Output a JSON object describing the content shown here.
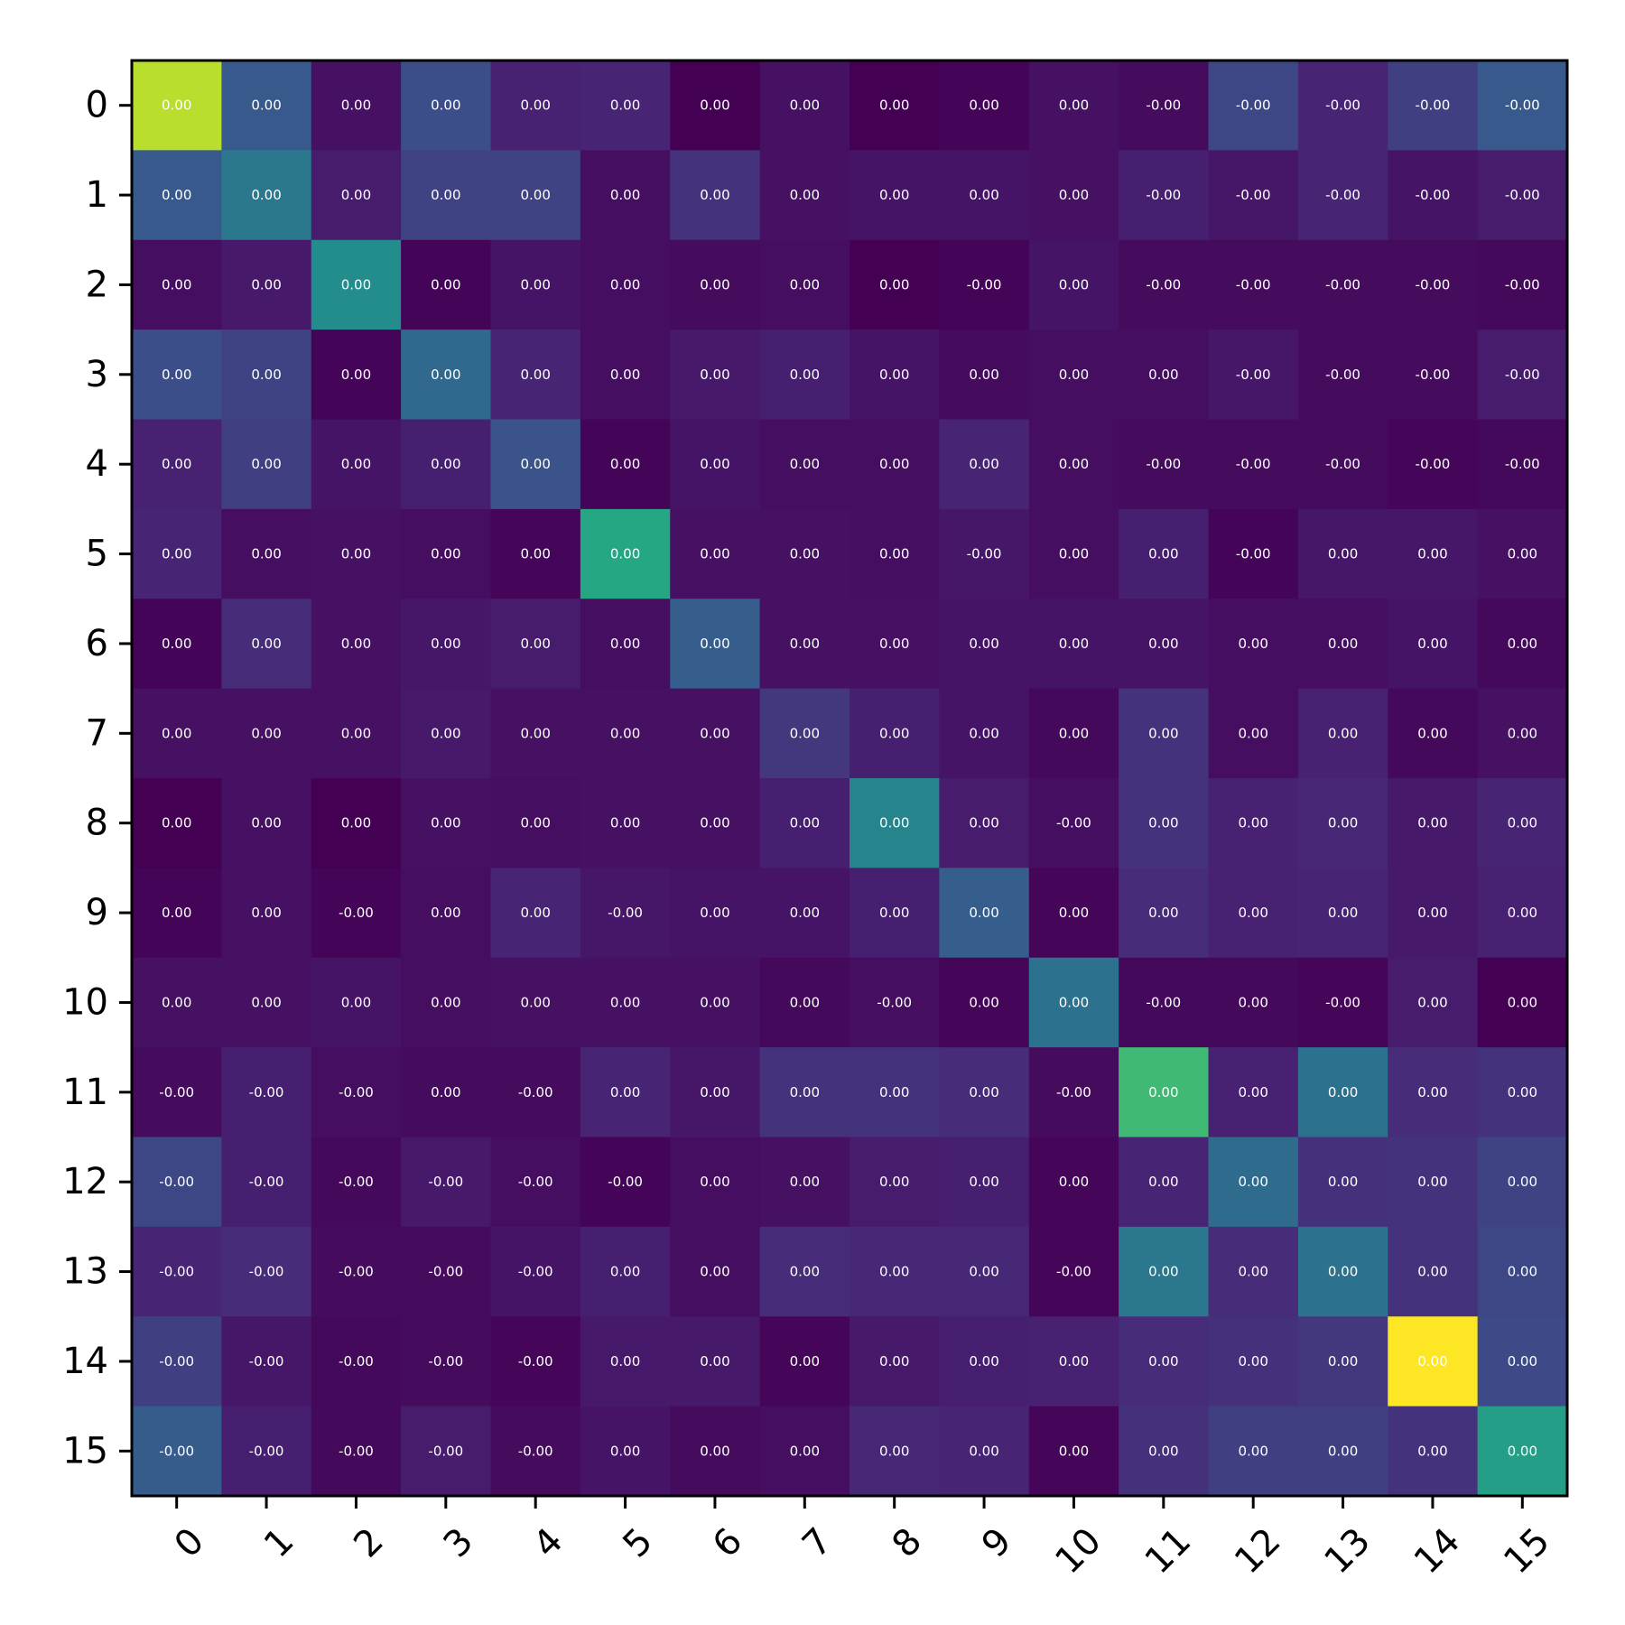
{
  "chart_data": {
    "type": "heatmap",
    "title": "",
    "xlabel": "",
    "ylabel": "",
    "colormap": "viridis",
    "x_categories": [
      "0",
      "1",
      "2",
      "3",
      "4",
      "5",
      "6",
      "7",
      "8",
      "9",
      "10",
      "11",
      "12",
      "13",
      "14",
      "15"
    ],
    "y_categories": [
      "0",
      "1",
      "2",
      "3",
      "4",
      "5",
      "6",
      "7",
      "8",
      "9",
      "10",
      "11",
      "12",
      "13",
      "14",
      "15"
    ],
    "intensity": [
      [
        0.9,
        0.28,
        0.06,
        0.24,
        0.12,
        0.13,
        0.0,
        0.06,
        0.0,
        0.01,
        0.06,
        0.04,
        0.22,
        0.13,
        0.2,
        0.28
      ],
      [
        0.28,
        0.4,
        0.1,
        0.21,
        0.21,
        0.05,
        0.17,
        0.06,
        0.07,
        0.07,
        0.06,
        0.11,
        0.08,
        0.13,
        0.07,
        0.1
      ],
      [
        0.05,
        0.09,
        0.48,
        0.01,
        0.07,
        0.05,
        0.04,
        0.05,
        0.0,
        0.01,
        0.07,
        0.04,
        0.04,
        0.04,
        0.04,
        0.03
      ],
      [
        0.24,
        0.21,
        0.01,
        0.34,
        0.13,
        0.05,
        0.09,
        0.11,
        0.07,
        0.04,
        0.05,
        0.05,
        0.08,
        0.04,
        0.04,
        0.1
      ],
      [
        0.12,
        0.2,
        0.07,
        0.11,
        0.26,
        0.01,
        0.07,
        0.05,
        0.05,
        0.13,
        0.05,
        0.04,
        0.04,
        0.04,
        0.02,
        0.03
      ],
      [
        0.13,
        0.05,
        0.06,
        0.05,
        0.02,
        0.6,
        0.06,
        0.06,
        0.05,
        0.08,
        0.05,
        0.11,
        0.01,
        0.08,
        0.08,
        0.06
      ],
      [
        0.01,
        0.15,
        0.06,
        0.08,
        0.1,
        0.05,
        0.3,
        0.06,
        0.06,
        0.07,
        0.07,
        0.07,
        0.05,
        0.05,
        0.07,
        0.03
      ],
      [
        0.06,
        0.06,
        0.06,
        0.09,
        0.06,
        0.06,
        0.06,
        0.18,
        0.11,
        0.07,
        0.03,
        0.17,
        0.05,
        0.12,
        0.03,
        0.06
      ],
      [
        0.0,
        0.06,
        0.0,
        0.06,
        0.05,
        0.06,
        0.06,
        0.11,
        0.45,
        0.1,
        0.05,
        0.17,
        0.12,
        0.14,
        0.09,
        0.13
      ],
      [
        0.01,
        0.06,
        0.01,
        0.05,
        0.13,
        0.08,
        0.07,
        0.07,
        0.11,
        0.3,
        0.02,
        0.15,
        0.12,
        0.13,
        0.09,
        0.12
      ],
      [
        0.06,
        0.06,
        0.07,
        0.05,
        0.06,
        0.06,
        0.06,
        0.03,
        0.05,
        0.02,
        0.38,
        0.03,
        0.03,
        0.02,
        0.1,
        0.0
      ],
      [
        0.04,
        0.11,
        0.05,
        0.04,
        0.04,
        0.13,
        0.08,
        0.17,
        0.17,
        0.15,
        0.04,
        0.68,
        0.12,
        0.38,
        0.15,
        0.17
      ],
      [
        0.22,
        0.11,
        0.03,
        0.09,
        0.05,
        0.01,
        0.05,
        0.06,
        0.1,
        0.11,
        0.02,
        0.13,
        0.35,
        0.16,
        0.17,
        0.21
      ],
      [
        0.13,
        0.15,
        0.04,
        0.04,
        0.07,
        0.11,
        0.05,
        0.15,
        0.14,
        0.14,
        0.02,
        0.4,
        0.15,
        0.38,
        0.17,
        0.22
      ],
      [
        0.2,
        0.08,
        0.03,
        0.04,
        0.02,
        0.09,
        0.09,
        0.02,
        0.09,
        0.11,
        0.12,
        0.15,
        0.16,
        0.18,
        1.0,
        0.23
      ],
      [
        0.29,
        0.11,
        0.03,
        0.1,
        0.04,
        0.07,
        0.04,
        0.05,
        0.14,
        0.13,
        0.02,
        0.16,
        0.2,
        0.2,
        0.17,
        0.56
      ]
    ],
    "cell_labels": [
      [
        "0.00",
        "0.00",
        "0.00",
        "0.00",
        "0.00",
        "0.00",
        "0.00",
        "0.00",
        "0.00",
        "0.00",
        "0.00",
        "-0.00",
        "-0.00",
        "-0.00",
        "-0.00",
        "-0.00"
      ],
      [
        "0.00",
        "0.00",
        "0.00",
        "0.00",
        "0.00",
        "0.00",
        "0.00",
        "0.00",
        "0.00",
        "0.00",
        "0.00",
        "-0.00",
        "-0.00",
        "-0.00",
        "-0.00",
        "-0.00"
      ],
      [
        "0.00",
        "0.00",
        "0.00",
        "0.00",
        "0.00",
        "0.00",
        "0.00",
        "0.00",
        "0.00",
        "-0.00",
        "0.00",
        "-0.00",
        "-0.00",
        "-0.00",
        "-0.00",
        "-0.00"
      ],
      [
        "0.00",
        "0.00",
        "0.00",
        "0.00",
        "0.00",
        "0.00",
        "0.00",
        "0.00",
        "0.00",
        "0.00",
        "0.00",
        "0.00",
        "-0.00",
        "-0.00",
        "-0.00",
        "-0.00"
      ],
      [
        "0.00",
        "0.00",
        "0.00",
        "0.00",
        "0.00",
        "0.00",
        "0.00",
        "0.00",
        "0.00",
        "0.00",
        "0.00",
        "-0.00",
        "-0.00",
        "-0.00",
        "-0.00",
        "-0.00"
      ],
      [
        "0.00",
        "0.00",
        "0.00",
        "0.00",
        "0.00",
        "0.00",
        "0.00",
        "0.00",
        "0.00",
        "-0.00",
        "0.00",
        "0.00",
        "-0.00",
        "0.00",
        "0.00",
        "0.00"
      ],
      [
        "0.00",
        "0.00",
        "0.00",
        "0.00",
        "0.00",
        "0.00",
        "0.00",
        "0.00",
        "0.00",
        "0.00",
        "0.00",
        "0.00",
        "0.00",
        "0.00",
        "0.00",
        "0.00"
      ],
      [
        "0.00",
        "0.00",
        "0.00",
        "0.00",
        "0.00",
        "0.00",
        "0.00",
        "0.00",
        "0.00",
        "0.00",
        "0.00",
        "0.00",
        "0.00",
        "0.00",
        "0.00",
        "0.00"
      ],
      [
        "0.00",
        "0.00",
        "0.00",
        "0.00",
        "0.00",
        "0.00",
        "0.00",
        "0.00",
        "0.00",
        "0.00",
        "-0.00",
        "0.00",
        "0.00",
        "0.00",
        "0.00",
        "0.00"
      ],
      [
        "0.00",
        "0.00",
        "-0.00",
        "0.00",
        "0.00",
        "-0.00",
        "0.00",
        "0.00",
        "0.00",
        "0.00",
        "0.00",
        "0.00",
        "0.00",
        "0.00",
        "0.00",
        "0.00"
      ],
      [
        "0.00",
        "0.00",
        "0.00",
        "0.00",
        "0.00",
        "0.00",
        "0.00",
        "0.00",
        "-0.00",
        "0.00",
        "0.00",
        "-0.00",
        "0.00",
        "-0.00",
        "0.00",
        "0.00"
      ],
      [
        "-0.00",
        "-0.00",
        "-0.00",
        "0.00",
        "-0.00",
        "0.00",
        "0.00",
        "0.00",
        "0.00",
        "0.00",
        "-0.00",
        "0.00",
        "0.00",
        "0.00",
        "0.00",
        "0.00"
      ],
      [
        "-0.00",
        "-0.00",
        "-0.00",
        "-0.00",
        "-0.00",
        "-0.00",
        "0.00",
        "0.00",
        "0.00",
        "0.00",
        "0.00",
        "0.00",
        "0.00",
        "0.00",
        "0.00",
        "0.00"
      ],
      [
        "-0.00",
        "-0.00",
        "-0.00",
        "-0.00",
        "-0.00",
        "0.00",
        "0.00",
        "0.00",
        "0.00",
        "0.00",
        "-0.00",
        "0.00",
        "0.00",
        "0.00",
        "0.00",
        "0.00"
      ],
      [
        "-0.00",
        "-0.00",
        "-0.00",
        "-0.00",
        "-0.00",
        "0.00",
        "0.00",
        "0.00",
        "0.00",
        "0.00",
        "0.00",
        "0.00",
        "0.00",
        "0.00",
        "0.00",
        "0.00"
      ],
      [
        "-0.00",
        "-0.00",
        "-0.00",
        "-0.00",
        "-0.00",
        "0.00",
        "0.00",
        "0.00",
        "0.00",
        "0.00",
        "0.00",
        "0.00",
        "0.00",
        "0.00",
        "0.00",
        "0.00"
      ]
    ],
    "grid": false,
    "legend": "none",
    "colorbar": false
  }
}
